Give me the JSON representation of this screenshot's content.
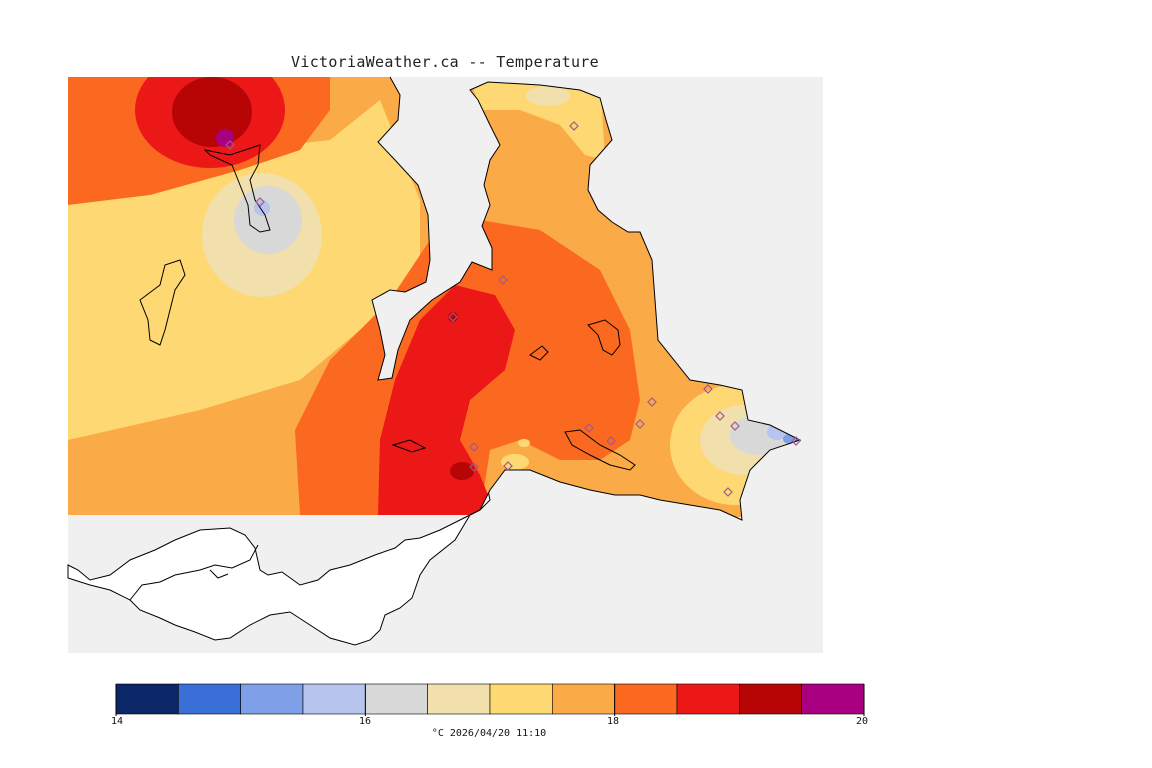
{
  "title": "VictoriaWeather.ca -- Temperature",
  "caption": "°C  2026/04/20 11:10",
  "colorbar": {
    "colors": [
      "#0b2768",
      "#3b6fd8",
      "#7f9fe8",
      "#b7c4ee",
      "#d8d8d8",
      "#f1dfac",
      "#fed872",
      "#fbaa48",
      "#fb6820",
      "#ec1717",
      "#b70505",
      "#a80080"
    ],
    "tick_labels": [
      "14",
      "16",
      "18",
      "20"
    ]
  },
  "map_colors": {
    "background": "#f0f0f0",
    "water_gap": "#ffffff",
    "coastline": "#000000",
    "station_marker": "#a05a8a"
  },
  "stations_count_hint": "",
  "marker_icon": "diamond-icon"
}
